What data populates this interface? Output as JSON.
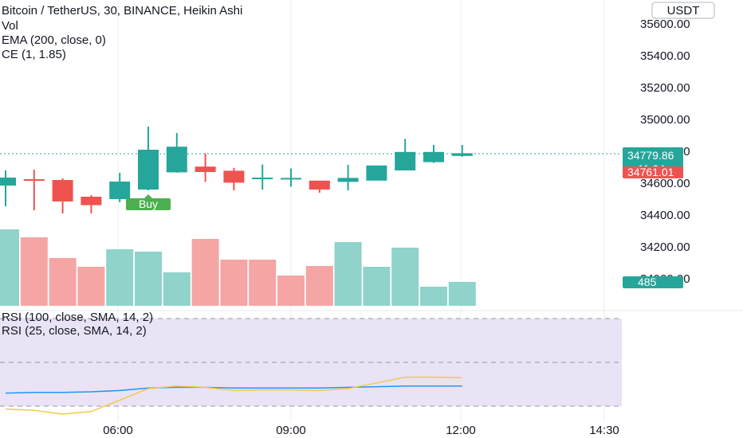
{
  "header": {
    "symbol_line": "Bitcoin / TetherUS, 30, BINANCE, Heikin Ashi",
    "indicators": [
      "Vol",
      "EMA (200, close, 0)",
      "CE (1, 1.85)"
    ],
    "currency_button": "USDT"
  },
  "rsi_pane": {
    "labels": [
      "RSI (100, close, SMA, 14, 2)",
      "RSI (25, close, SMA, 14, 2)"
    ]
  },
  "price_tags": {
    "last_price": "34779.86",
    "countdown": "11:04",
    "ce_level": "34761.01",
    "volume": "485"
  },
  "annotations": {
    "buy_label": "Buy"
  },
  "colors": {
    "up": "#26a69a",
    "down": "#ef5350",
    "vol_up": "#8fd3cb",
    "vol_down": "#f5a5a3",
    "rsi_fast": "#f2c94c",
    "rsi_slow": "#2196f3",
    "rsi_band": "#e9e3f5",
    "buy_tag": "#4caf50"
  },
  "chart_data": {
    "type": "candlestick",
    "title": "Bitcoin / TetherUS, 30, BINANCE, Heikin Ashi",
    "y_ticks": [
      35600,
      35400,
      35200,
      35000,
      34800,
      34600,
      34400,
      34200,
      34000
    ],
    "y_tick_labels": [
      "35600.00",
      "35400.00",
      "35200.00",
      "35000.00",
      "34800.00",
      "34600.00",
      "34400.00",
      "34200.00",
      "34000.00"
    ],
    "x_tick_labels": [
      "06:00",
      "09:00",
      "12:00",
      "14:30"
    ],
    "candles": [
      {
        "o": 34585,
        "c": 34635,
        "h": 34680,
        "l": 34455
      },
      {
        "o": 34625,
        "c": 34620,
        "h": 34685,
        "l": 34430
      },
      {
        "o": 34620,
        "c": 34485,
        "h": 34630,
        "l": 34410
      },
      {
        "o": 34515,
        "c": 34462,
        "h": 34525,
        "l": 34410
      },
      {
        "o": 34500,
        "c": 34610,
        "h": 34665,
        "l": 34480
      },
      {
        "o": 34560,
        "c": 34810,
        "h": 34955,
        "l": 34555
      },
      {
        "o": 34668,
        "c": 34829,
        "h": 34915,
        "l": 34666
      },
      {
        "o": 34704,
        "c": 34670,
        "h": 34787,
        "l": 34608
      },
      {
        "o": 34678,
        "c": 34603,
        "h": 34696,
        "l": 34555
      },
      {
        "o": 34627,
        "c": 34635,
        "h": 34717,
        "l": 34560
      },
      {
        "o": 34630,
        "c": 34633,
        "h": 34692,
        "l": 34578
      },
      {
        "o": 34616,
        "c": 34560,
        "h": 34612,
        "l": 34540
      },
      {
        "o": 34608,
        "c": 34633,
        "h": 34715,
        "l": 34555
      },
      {
        "o": 34616,
        "c": 34711,
        "h": 34711,
        "l": 34616
      },
      {
        "o": 34680,
        "c": 34796,
        "h": 34878,
        "l": 34683
      },
      {
        "o": 34732,
        "c": 34796,
        "h": 34840,
        "l": 34727
      },
      {
        "o": 34771,
        "c": 34788,
        "h": 34840,
        "l": 34766
      }
    ],
    "volume": [
      {
        "v": 480,
        "dir": "up"
      },
      {
        "v": 430,
        "dir": "down"
      },
      {
        "v": 300,
        "dir": "down"
      },
      {
        "v": 245,
        "dir": "down"
      },
      {
        "v": 355,
        "dir": "up"
      },
      {
        "v": 340,
        "dir": "up"
      },
      {
        "v": 210,
        "dir": "up"
      },
      {
        "v": 420,
        "dir": "down"
      },
      {
        "v": 290,
        "dir": "down"
      },
      {
        "v": 290,
        "dir": "down"
      },
      {
        "v": 190,
        "dir": "down"
      },
      {
        "v": 250,
        "dir": "down"
      },
      {
        "v": 400,
        "dir": "up"
      },
      {
        "v": 245,
        "dir": "up"
      },
      {
        "v": 365,
        "dir": "up"
      },
      {
        "v": 120,
        "dir": "up"
      },
      {
        "v": 150,
        "dir": "up"
      }
    ],
    "rsi_fast": [
      8,
      6,
      0,
      4,
      22,
      40,
      44,
      42,
      37,
      38,
      38,
      37,
      40,
      49,
      58,
      58,
      57
    ],
    "rsi_slow": [
      33,
      34,
      34,
      35,
      37,
      41,
      42,
      42,
      41,
      41,
      41,
      41,
      42,
      43,
      44,
      44,
      44
    ],
    "rsi_fast_label": "RSI (25, close, SMA, 14, 2)",
    "rsi_slow_label": "RSI (100, close, SMA, 14, 2)",
    "buy_signal_index": 5
  }
}
